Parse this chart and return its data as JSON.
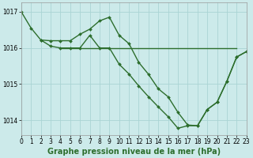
{
  "series": [
    {
      "x": [
        0,
        1,
        2,
        3,
        4,
        5,
        6,
        7,
        8,
        9,
        10,
        11,
        12,
        13,
        14,
        15,
        16,
        17,
        18,
        19,
        20,
        21,
        22,
        23
      ],
      "y": [
        1017.0,
        1016.55,
        1016.22,
        1016.2,
        1016.2,
        1016.2,
        1016.38,
        1016.52,
        1016.75,
        1016.85,
        1016.35,
        1016.12,
        1015.6,
        1015.27,
        1014.87,
        1014.65,
        1014.22,
        1013.87,
        1013.85,
        1014.3,
        1014.5,
        1015.08,
        1015.75,
        1015.9
      ]
    },
    {
      "x": [
        2,
        3,
        4,
        5,
        6,
        7,
        8,
        9,
        10,
        11,
        12,
        13,
        14,
        15,
        16,
        17,
        18,
        19,
        20,
        21,
        22,
        23
      ],
      "y": [
        1016.22,
        1016.05,
        1016.0,
        1016.0,
        1016.0,
        1016.35,
        1016.0,
        1016.0,
        1015.55,
        1015.28,
        1014.95,
        1014.65,
        1014.37,
        1014.1,
        1013.78,
        1013.85,
        1013.85,
        1014.3,
        1014.5,
        1015.08,
        1015.75,
        1015.9
      ]
    },
    {
      "x": [
        4,
        22
      ],
      "y": [
        1016.0,
        1016.0
      ]
    }
  ],
  "line_color": "#2d6e2d",
  "marker": "D",
  "markersize": 2.0,
  "linewidth": 1.0,
  "no_marker_series": [
    2
  ],
  "xlim": [
    0,
    23
  ],
  "ylim": [
    1013.6,
    1017.25
  ],
  "yticks": [
    1014,
    1015,
    1016,
    1017
  ],
  "xticks": [
    0,
    1,
    2,
    3,
    4,
    5,
    6,
    7,
    8,
    9,
    10,
    11,
    12,
    13,
    14,
    15,
    16,
    17,
    18,
    19,
    20,
    21,
    22,
    23
  ],
  "xtick_labels": [
    "0",
    "1",
    "2",
    "3",
    "4",
    "5",
    "6",
    "7",
    "8",
    "9",
    "10",
    "11",
    "12",
    "13",
    "14",
    "15",
    "16",
    "17",
    "18",
    "19",
    "20",
    "21",
    "22",
    "23"
  ],
  "xlabel": "Graphe pression niveau de la mer (hPa)",
  "background_color": "#cceaea",
  "grid_color": "#aad4d4",
  "tick_label_fontsize": 5.5,
  "xlabel_fontsize": 7.0
}
